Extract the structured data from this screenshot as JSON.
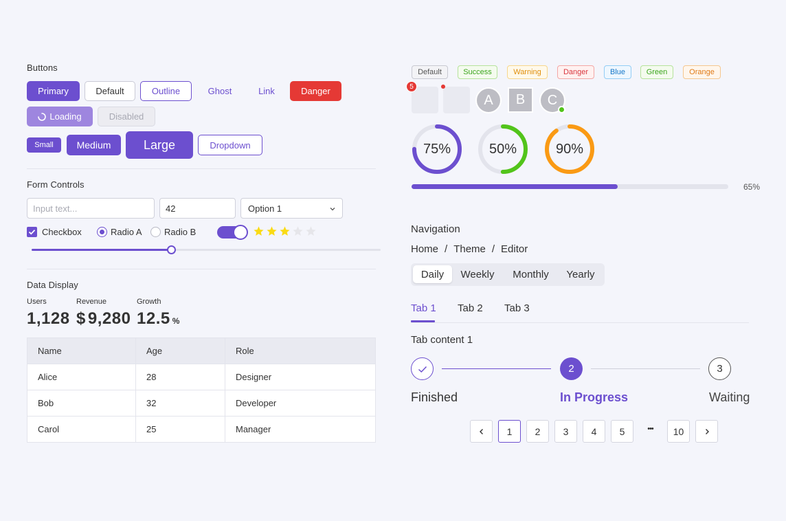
{
  "buttons": {
    "title": "Buttons",
    "primary": "Primary",
    "default": "Default",
    "outline": "Outline",
    "ghost": "Ghost",
    "link": "Link",
    "danger": "Danger",
    "loading": "Loading",
    "disabled": "Disabled",
    "small": "Small",
    "medium": "Medium",
    "large": "Large",
    "dropdown": "Dropdown"
  },
  "form": {
    "title": "Form Controls",
    "text_placeholder": "Input text...",
    "number_value": "42",
    "select_value": "Option 1",
    "checkbox_label": "Checkbox",
    "checkbox_checked": true,
    "radio_a": "Radio A",
    "radio_b": "Radio B",
    "radio_selected": "Radio A",
    "toggle_on": true,
    "rating": 3,
    "rating_max": 5,
    "slider_value": 0.4
  },
  "data_display": {
    "title": "Data Display",
    "stats": [
      {
        "label": "Users",
        "value": "1,128",
        "prefix": "",
        "suffix": ""
      },
      {
        "label": "Revenue",
        "value": "9,280",
        "prefix": "$",
        "suffix": ""
      },
      {
        "label": "Growth",
        "value": "12.5",
        "prefix": "",
        "suffix": "%"
      }
    ],
    "table": {
      "headers": [
        "Name",
        "Age",
        "Role"
      ],
      "rows": [
        [
          "Alice",
          "28",
          "Designer"
        ],
        [
          "Bob",
          "32",
          "Developer"
        ],
        [
          "Carol",
          "25",
          "Manager"
        ]
      ]
    }
  },
  "tags": [
    {
      "label": "Default",
      "color": "#555555",
      "bg": "#f3f3f6",
      "border": "#c8c9d2"
    },
    {
      "label": "Success",
      "color": "#3aa51c",
      "bg": "#f4fbee",
      "border": "#b6e39b"
    },
    {
      "label": "Warning",
      "color": "#e08e0b",
      "bg": "#fff9ea",
      "border": "#f7d78c"
    },
    {
      "label": "Danger",
      "color": "#d9363e",
      "bg": "#fff1f0",
      "border": "#f3a7a5"
    },
    {
      "label": "Blue",
      "color": "#1677c8",
      "bg": "#eef7ff",
      "border": "#93cdf5"
    },
    {
      "label": "Green",
      "color": "#3aa51c",
      "bg": "#f4fbee",
      "border": "#b6e39b"
    },
    {
      "label": "Orange",
      "color": "#e07a16",
      "bg": "#fff6ec",
      "border": "#f5c78f"
    }
  ],
  "badges": {
    "count": "5",
    "avatars": [
      "A",
      "B",
      "C"
    ]
  },
  "progress": {
    "rings": [
      {
        "value": 75,
        "label": "75%",
        "color": "#6c4fcf"
      },
      {
        "value": 50,
        "label": "50%",
        "color": "#52c41a"
      },
      {
        "value": 90,
        "label": "90%",
        "color": "#fa9a14"
      }
    ],
    "bar_value": 65,
    "bar_label": "65%",
    "bar_color": "#6c4fcf"
  },
  "navigation": {
    "title": "Navigation",
    "breadcrumb": [
      "Home",
      "Theme",
      "Editor"
    ],
    "separator": "/",
    "segments": [
      "Daily",
      "Weekly",
      "Monthly",
      "Yearly"
    ],
    "segment_selected": "Daily",
    "tabs": [
      "Tab 1",
      "Tab 2",
      "Tab 3"
    ],
    "tab_selected": "Tab 1",
    "tab_content": "Tab content 1"
  },
  "steps": [
    {
      "num": "1",
      "label": "Finished",
      "status": "finished"
    },
    {
      "num": "2",
      "label": "In Progress",
      "status": "process"
    },
    {
      "num": "3",
      "label": "Waiting",
      "status": "wait"
    }
  ],
  "pagination": {
    "pages": [
      "1",
      "2",
      "3",
      "4",
      "5"
    ],
    "ellipsis": "•••",
    "last": "10",
    "current": "1"
  },
  "colors": {
    "accent": "#6c4fcf",
    "danger": "#e53935",
    "success": "#52c41a",
    "star": "#fadb14"
  }
}
